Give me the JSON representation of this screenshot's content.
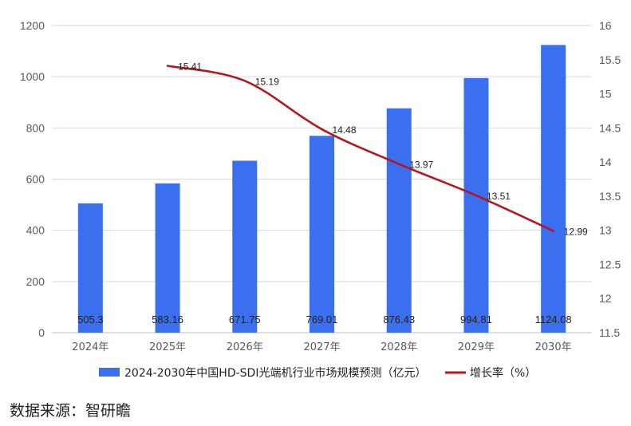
{
  "chart_data": {
    "type": "bar",
    "categories": [
      "2024年",
      "2025年",
      "2026年",
      "2027年",
      "2028年",
      "2029年",
      "2030年"
    ],
    "series": [
      {
        "name": "2024-2030年中国HD-SDI光端机行业市场规模预测（亿元）",
        "type": "bar",
        "axis": "left",
        "color": "#3a6ff0",
        "values": [
          505.3,
          583.16,
          671.75,
          769.01,
          876.43,
          994.81,
          1124.08
        ],
        "labels": [
          "505.3",
          "583.16",
          "671.75",
          "769.01",
          "876.43",
          "994.81",
          "1124.08"
        ]
      },
      {
        "name": "增长率（%）",
        "type": "line",
        "axis": "right",
        "color": "#b5171c",
        "values": [
          null,
          15.41,
          15.19,
          14.48,
          13.97,
          13.51,
          12.99
        ],
        "labels": [
          "",
          "15.41",
          "15.19",
          "14.48",
          "13.97",
          "13.51",
          "12.99"
        ]
      }
    ],
    "y_left": {
      "range": [
        0,
        1200
      ],
      "ticks": [
        0,
        200,
        400,
        600,
        800,
        1000,
        1200
      ]
    },
    "y_right": {
      "range": [
        11.5,
        16
      ],
      "ticks": [
        "11.5",
        "12",
        "12.5",
        "13",
        "13.5",
        "14",
        "14.5",
        "15",
        "15.5",
        "16"
      ]
    },
    "grid": true,
    "legend": "bottom"
  },
  "source": "数据来源：智研瞻"
}
